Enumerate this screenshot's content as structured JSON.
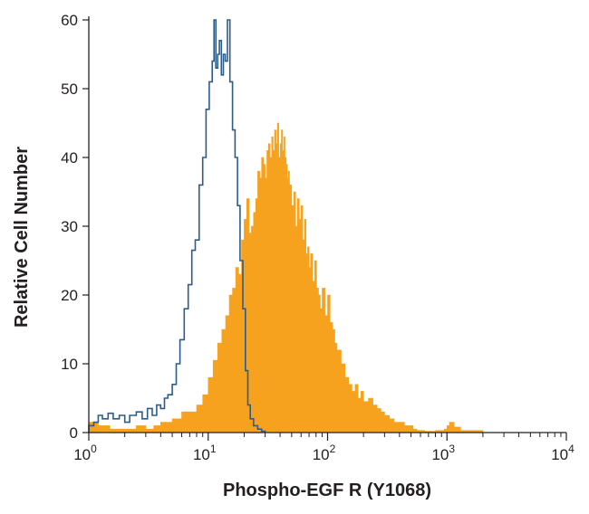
{
  "chart_data": {
    "type": "area",
    "title": "",
    "xlabel": "Phospho-EGF R (Y1068)",
    "ylabel": "Relative Cell Number",
    "x_scale": "log",
    "xlim": [
      1,
      10000
    ],
    "ylim": [
      0,
      60
    ],
    "grid": false,
    "legend": "none",
    "x_ticks": [
      {
        "value": 1,
        "base": "10",
        "exp": "0"
      },
      {
        "value": 10,
        "base": "10",
        "exp": "1"
      },
      {
        "value": 100,
        "base": "10",
        "exp": "2"
      },
      {
        "value": 1000,
        "base": "10",
        "exp": "3"
      },
      {
        "value": 10000,
        "base": "10",
        "exp": "4"
      }
    ],
    "y_ticks": [
      0,
      10,
      20,
      30,
      40,
      50,
      60
    ],
    "series": [
      {
        "color": "#2c5d8a",
        "style": "outline",
        "x": [
          1,
          1.1,
          1.2,
          1.3,
          1.45,
          1.6,
          1.8,
          2,
          2.2,
          2.5,
          2.8,
          3.1,
          3.4,
          3.7,
          4,
          4.3,
          4.6,
          5,
          5.4,
          5.8,
          6.3,
          6.8,
          7.3,
          7.8,
          8.4,
          9,
          9.6,
          10.2,
          10.8,
          11.2,
          11.6,
          12.0,
          12.4,
          12.9,
          13.4,
          13.9,
          14.5,
          15.2,
          16.0,
          16.8,
          17.6,
          18.5,
          19.5,
          20.5,
          21.5,
          22.5,
          24,
          26,
          28,
          30
        ],
        "y": [
          1,
          1.5,
          2.5,
          2,
          2.8,
          2,
          2.5,
          1.5,
          2.5,
          3,
          2,
          3.5,
          2.5,
          4,
          3.5,
          5,
          5.5,
          7,
          10,
          13.5,
          18,
          21.5,
          26.5,
          28,
          36,
          40,
          47,
          51,
          54,
          60,
          53,
          55,
          57,
          52,
          55,
          54,
          60,
          51,
          44,
          40,
          33,
          25,
          18,
          9,
          4,
          2,
          1,
          0.5,
          0.2,
          0
        ],
        "area_estimate": "unfilled histogram outline"
      },
      {
        "color": "#f6a21e",
        "style": "filled",
        "x": [
          1,
          1.2,
          1.5,
          2,
          2.5,
          3,
          3.5,
          4,
          5,
          6,
          7,
          8,
          9,
          10,
          11,
          12,
          13,
          14,
          15,
          16,
          17,
          18,
          19,
          20,
          21,
          22,
          23,
          24,
          25,
          26,
          27,
          28,
          29,
          30,
          31,
          32,
          33,
          34,
          35,
          36,
          37,
          38,
          39,
          40,
          41,
          42,
          43,
          44,
          45,
          46,
          47,
          48,
          50,
          52,
          54,
          56,
          58,
          60,
          62,
          64,
          66,
          68,
          70,
          72,
          75,
          78,
          81,
          84,
          87,
          90,
          95,
          100,
          105,
          110,
          115,
          120,
          130,
          140,
          150,
          160,
          170,
          180,
          190,
          200,
          220,
          240,
          260,
          280,
          300,
          330,
          360,
          400,
          440,
          480,
          520,
          560,
          650,
          800,
          950,
          1000,
          1050,
          1150,
          1300,
          2000,
          5000,
          10000
        ],
        "y": [
          1.5,
          1,
          0.5,
          0.5,
          1,
          0.5,
          1,
          1.5,
          2,
          3,
          3,
          4,
          5.5,
          8,
          10.5,
          13,
          15,
          17,
          20,
          21,
          24,
          23,
          28,
          31,
          34,
          29,
          30,
          32,
          34,
          38,
          37,
          40,
          39,
          37,
          41,
          42,
          40,
          43,
          41,
          44,
          42,
          45,
          40,
          42,
          44,
          41,
          43,
          40,
          39,
          37,
          38,
          36,
          33,
          35,
          30,
          34,
          31,
          33,
          28,
          31,
          26,
          27,
          24,
          26,
          22,
          25,
          21,
          20,
          18,
          21,
          17,
          20,
          16,
          15,
          13,
          12,
          10,
          8,
          7,
          6,
          7,
          5,
          6,
          4.5,
          5,
          4,
          3.5,
          3,
          2.5,
          2,
          1.5,
          1.5,
          1,
          1,
          0.5,
          0.3,
          0.2,
          0.3,
          0.5,
          1,
          1.5,
          0.8,
          0.3,
          0,
          0,
          0
        ]
      }
    ]
  }
}
